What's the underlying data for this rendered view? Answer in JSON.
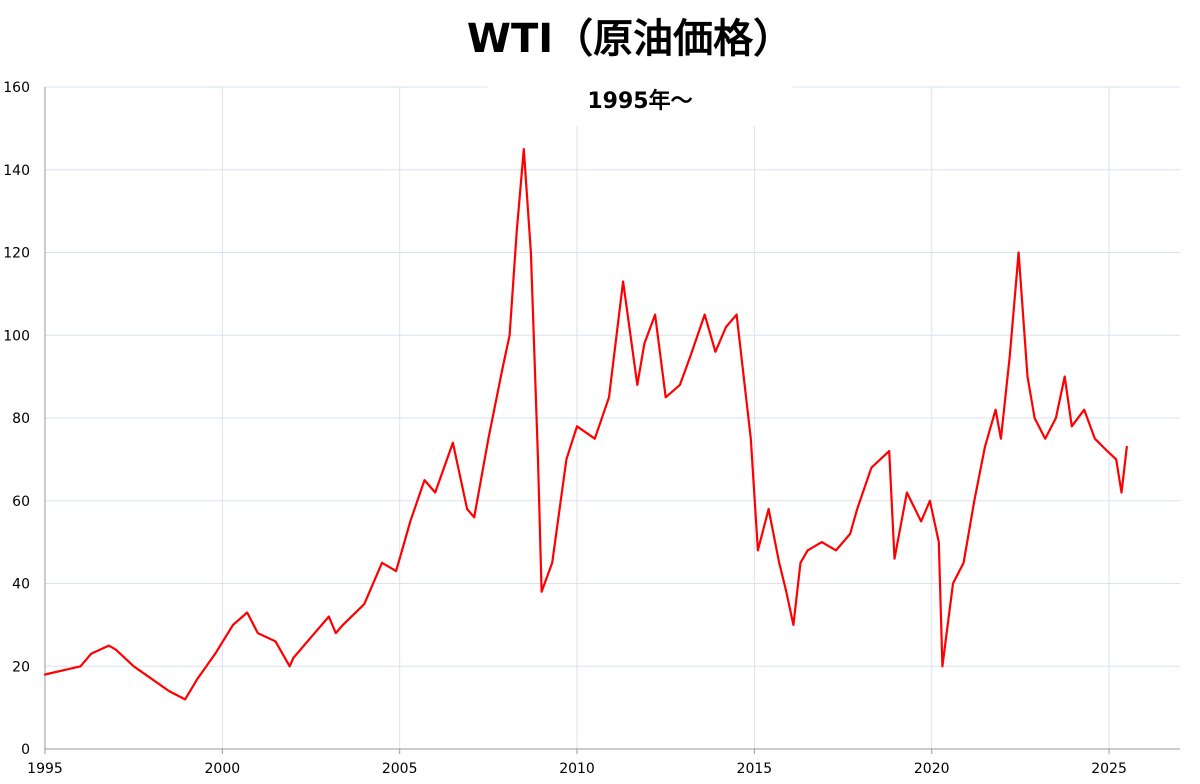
{
  "chart_data": {
    "type": "line",
    "title": "WTI（原油価格）",
    "subtitle": "1995年〜",
    "xlabel": "",
    "ylabel": "",
    "xlim": [
      1995,
      2027
    ],
    "ylim": [
      0,
      160
    ],
    "x_ticks": [
      "1995",
      "2000",
      "2005",
      "2010",
      "2015",
      "2020",
      "2025"
    ],
    "y_ticks": [
      "0",
      "20",
      "40",
      "60",
      "80",
      "100",
      "120",
      "140",
      "160"
    ],
    "grid": true,
    "line_color": "#ff0000",
    "grid_color": "#d9e1f2",
    "series": [
      {
        "x": [
          1995.0,
          1995.5,
          1996.0,
          1996.3,
          1996.8,
          1997.0,
          1997.5,
          1998.0,
          1998.5,
          1998.95,
          1999.3,
          1999.8,
          2000.3,
          2000.7,
          2001.0,
          2001.5,
          2001.9,
          2002.0,
          2002.5,
          2003.0,
          2003.2,
          2003.4,
          2004.0,
          2004.5,
          2004.9,
          2005.3,
          2005.7,
          2006.0,
          2006.5,
          2006.9,
          2007.1,
          2007.5,
          2007.9,
          2008.1,
          2008.3,
          2008.5,
          2008.7,
          2008.9,
          2009.0,
          2009.3,
          2009.7,
          2010.0,
          2010.5,
          2010.9,
          2011.3,
          2011.7,
          2011.9,
          2012.2,
          2012.5,
          2012.9,
          2013.2,
          2013.6,
          2013.9,
          2014.2,
          2014.5,
          2014.9,
          2015.1,
          2015.4,
          2015.7,
          2015.9,
          2016.1,
          2016.3,
          2016.5,
          2016.9,
          2017.3,
          2017.7,
          2017.9,
          2018.3,
          2018.8,
          2018.95,
          2019.3,
          2019.7,
          2019.95,
          2020.2,
          2020.3,
          2020.6,
          2020.9,
          2021.2,
          2021.5,
          2021.8,
          2021.95,
          2022.2,
          2022.45,
          2022.7,
          2022.9,
          2023.2,
          2023.5,
          2023.75,
          2023.95,
          2024.3,
          2024.6,
          2024.95,
          2025.2,
          2025.35,
          2025.5
        ],
        "y": [
          18,
          19,
          20,
          23,
          25,
          24,
          20,
          17,
          14,
          12,
          17,
          23,
          30,
          33,
          28,
          26,
          20,
          22,
          27,
          32,
          28,
          30,
          35,
          45,
          43,
          55,
          65,
          62,
          74,
          58,
          56,
          75,
          92,
          100,
          125,
          145,
          120,
          70,
          38,
          45,
          70,
          78,
          75,
          85,
          113,
          88,
          98,
          105,
          85,
          88,
          95,
          105,
          96,
          102,
          105,
          75,
          48,
          58,
          45,
          38,
          30,
          45,
          48,
          50,
          48,
          52,
          58,
          68,
          72,
          46,
          62,
          55,
          60,
          50,
          20,
          40,
          45,
          60,
          73,
          82,
          75,
          95,
          120,
          90,
          80,
          75,
          80,
          90,
          78,
          82,
          75,
          72,
          70,
          62,
          73
        ]
      }
    ]
  }
}
